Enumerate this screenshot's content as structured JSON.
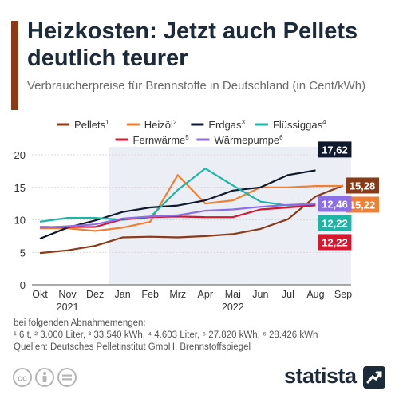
{
  "header": {
    "title": "Heizkosten: Jetzt auch Pellets deutlich teurer",
    "subtitle": "Verbraucherpreise für Brennstoffe in Deutschland (in Cent/kWh)"
  },
  "chart_data": {
    "type": "line",
    "title": "Heizkosten: Jetzt auch Pellets deutlich teurer",
    "subtitle": "Verbraucherpreise für Brennstoffe in Deutschland (in Cent/kWh)",
    "categories": [
      "Okt",
      "Nov",
      "Dez",
      "Jan",
      "Feb",
      "Mrz",
      "Apr",
      "Mai",
      "Jun",
      "Jul",
      "Aug",
      "Sep"
    ],
    "year_labels": [
      {
        "label": "2021",
        "under": "Nov"
      },
      {
        "label": "2022",
        "under": "Mai"
      }
    ],
    "ylim": [
      0,
      20
    ],
    "yticks": [
      0,
      5,
      10,
      15,
      20
    ],
    "grid": true,
    "legend_position": "top",
    "highlight_band": {
      "from": "Jan",
      "to": "Sep",
      "color": "#eceef5"
    },
    "series": [
      {
        "name": "Pellets",
        "sup": "1",
        "color": "#8a3a16",
        "values": [
          4.9,
          5.3,
          6.0,
          7.3,
          7.4,
          7.3,
          7.5,
          7.8,
          8.6,
          10.1,
          13.6,
          15.28
        ],
        "end_label": "15,28"
      },
      {
        "name": "Heizöl",
        "sup": "2",
        "color": "#f07f32",
        "values": [
          8.7,
          8.7,
          8.3,
          8.8,
          9.7,
          16.9,
          12.5,
          13.0,
          15.0,
          15.0,
          15.2,
          15.22
        ],
        "end_label": "15,22"
      },
      {
        "name": "Erdgas",
        "sup": "3",
        "color": "#101a2e",
        "values": [
          7.1,
          8.8,
          9.9,
          11.2,
          11.9,
          12.2,
          13.0,
          14.5,
          15.0,
          16.9,
          17.62,
          null
        ],
        "end_label": "17,62"
      },
      {
        "name": "Flüssiggas",
        "sup": "4",
        "color": "#1fb5a6",
        "values": [
          9.7,
          10.3,
          10.3,
          10.0,
          10.4,
          14.6,
          17.9,
          15.3,
          12.8,
          12.2,
          12.22,
          null
        ],
        "end_label": "12,22"
      },
      {
        "name": "Fernwärme",
        "sup": "5",
        "color": "#d3182f",
        "values": [
          8.9,
          8.9,
          8.9,
          10.1,
          10.4,
          10.5,
          10.4,
          10.4,
          11.6,
          11.9,
          12.22,
          null
        ],
        "end_label": "12,22"
      },
      {
        "name": "Wärmepumpe",
        "sup": "6",
        "color": "#8c6ee6",
        "values": [
          8.8,
          9.0,
          9.3,
          10.2,
          10.5,
          10.7,
          11.4,
          11.6,
          12.0,
          12.3,
          12.46,
          null
        ],
        "end_label": "12,46"
      }
    ]
  },
  "footer": {
    "notes_intro": "bei folgenden Abnahmemengen:",
    "notes_units": "¹ 6 t, ² 3.000 Liter, ³ 33.540 kWh, ⁴ 4.603 Liter, ⁵ 27.820 kWh, ⁶ 28.426 kWh",
    "sources": "Quellen: Deutsches Pelletinstitut GmbH, Brennstoffspiegel",
    "brand": "statista",
    "license_icons": [
      "cc-icon",
      "by-icon",
      "nd-icon"
    ]
  }
}
